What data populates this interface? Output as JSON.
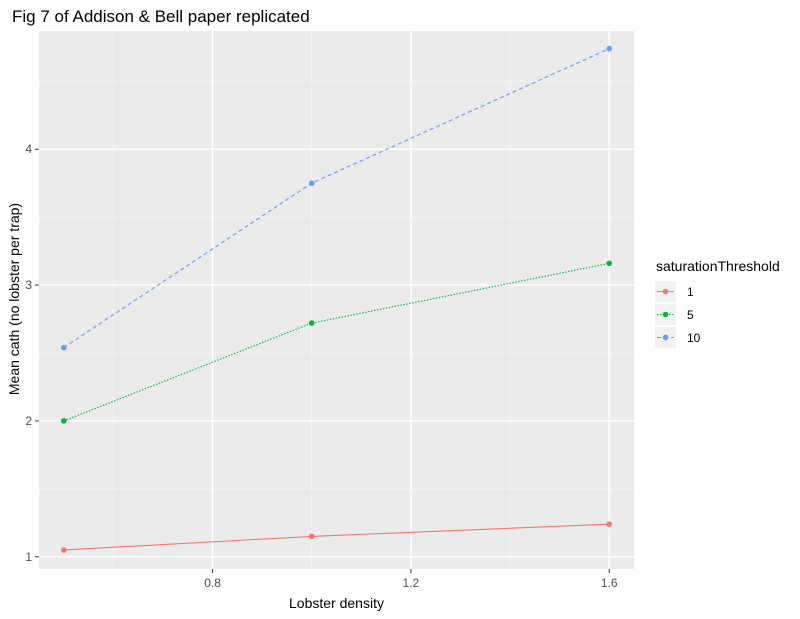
{
  "chart_data": {
    "type": "line",
    "title": "Fig 7 of Addison & Bell paper replicated",
    "xlabel": "Lobster density",
    "ylabel": "Mean cath (no lobster per trap)",
    "x": [
      0.5,
      1.0,
      1.6
    ],
    "x_ticks": [
      0.8,
      1.2,
      1.6
    ],
    "x_tick_labels": [
      "0.8",
      "1.2",
      "1.6"
    ],
    "y_ticks": [
      1,
      2,
      3,
      4
    ],
    "y_tick_labels": [
      "1",
      "2",
      "3",
      "4"
    ],
    "xlim": [
      0.45,
      1.65
    ],
    "ylim": [
      0.91,
      4.87
    ],
    "grid": true,
    "legend_position": "right",
    "legend_title": "saturationThreshold",
    "series": [
      {
        "name": "1",
        "values": [
          1.05,
          1.15,
          1.24
        ],
        "color": "#F8766D",
        "linestyle": "solid"
      },
      {
        "name": "5",
        "values": [
          2.0,
          2.72,
          3.16
        ],
        "color": "#00BA38",
        "linestyle": "dotted"
      },
      {
        "name": "10",
        "values": [
          2.54,
          3.75,
          4.74
        ],
        "color": "#619CFF",
        "linestyle": "dashed"
      }
    ]
  }
}
